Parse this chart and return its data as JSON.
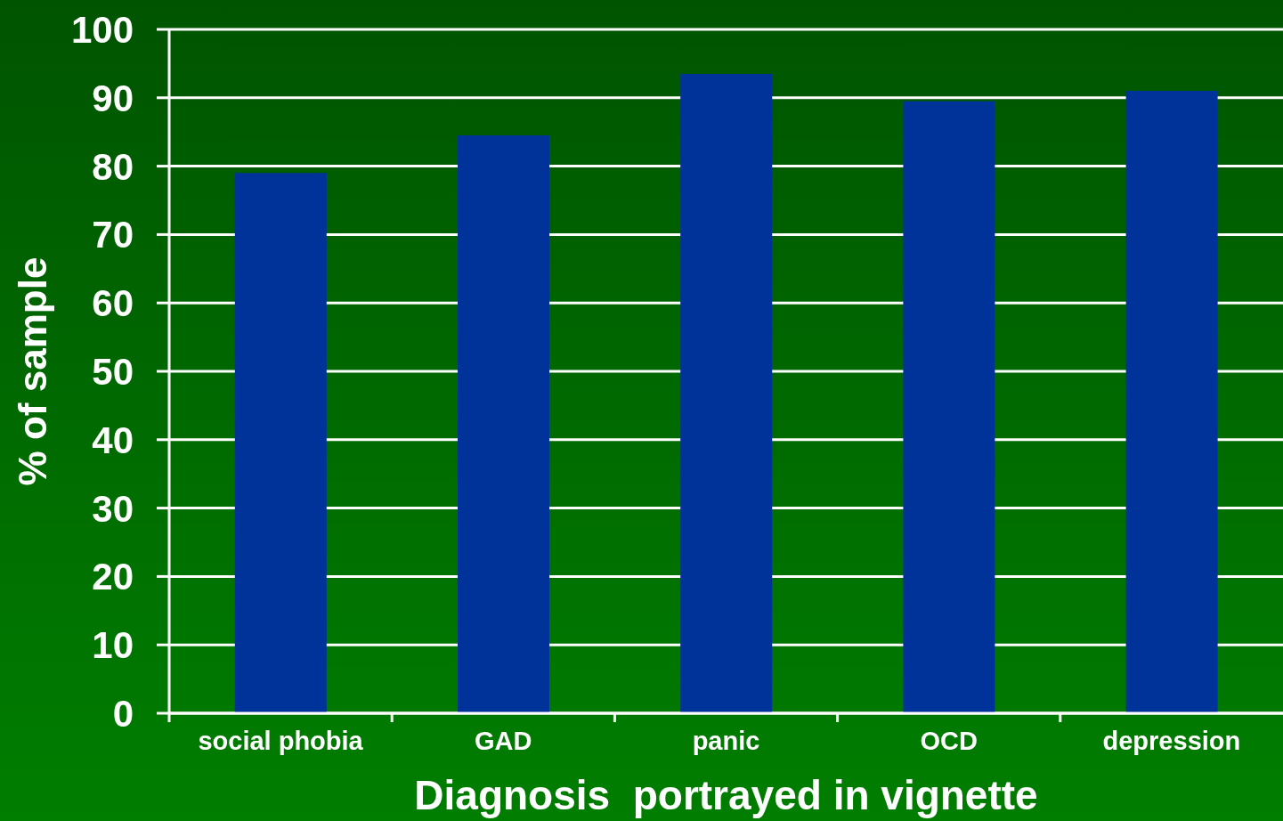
{
  "chart_data": {
    "type": "bar",
    "xlabel": "Diagnosis  portrayed in vignette",
    "ylabel": "% of sample",
    "categories": [
      "social phobia",
      "GAD",
      "panic",
      "OCD",
      "depression"
    ],
    "values": [
      79,
      84.5,
      93.5,
      89.5,
      91
    ],
    "color": "#003399",
    "ylim": [
      0,
      100
    ],
    "yticks": [
      0,
      10,
      20,
      30,
      40,
      50,
      60,
      70,
      80,
      90,
      100
    ],
    "grid": "y"
  }
}
